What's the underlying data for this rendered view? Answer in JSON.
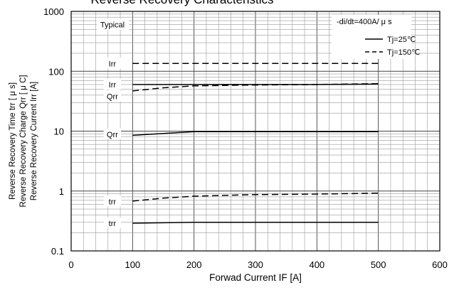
{
  "chart_data": {
    "type": "line",
    "title": "Reverse Recovery Characteristics",
    "xlabel": "Forwad Current IF [A]",
    "ylabel_lines": [
      "Reverse Recovery Time trr [ μ s]",
      "Reverse Recovery Charge Qrr [ μ C]",
      "Reverse Recovery Current Irr [A]"
    ],
    "x_scale": "linear",
    "y_scale": "log",
    "xlim": [
      0,
      600
    ],
    "ylim": [
      0.1,
      1000
    ],
    "x_ticks": [
      0,
      100,
      200,
      300,
      400,
      500,
      600
    ],
    "y_ticks": [
      {
        "value": 0.1,
        "label": "0.1"
      },
      {
        "value": 1,
        "label": "1"
      },
      {
        "value": 10,
        "label": "10"
      },
      {
        "value": 100,
        "label": "100"
      },
      {
        "value": 1000,
        "label": "1000"
      }
    ],
    "grid": true,
    "condition_label": "Typical",
    "test_condition": "-di/dt=400A/ μ s",
    "legend_position": "top-right",
    "legend": [
      {
        "label": "Tj=25℃",
        "style": "solid"
      },
      {
        "label": "Tj=150℃",
        "style": "dashed"
      }
    ],
    "series": [
      {
        "quantity": "Irr",
        "temperature": "150",
        "style": "dashed",
        "x": [
          100,
          200,
          300,
          400,
          500
        ],
        "y": [
          135,
          135,
          135,
          135,
          135
        ]
      },
      {
        "quantity": "Irr",
        "temperature": "25",
        "style": "solid",
        "x": [
          100,
          200,
          300,
          400,
          500
        ],
        "y": [
          60,
          60,
          60,
          60,
          61
        ]
      },
      {
        "quantity": "Qrr",
        "temperature": "150",
        "style": "dashed",
        "x": [
          100,
          150,
          200,
          300,
          400,
          500
        ],
        "y": [
          47,
          53,
          57,
          59,
          60,
          62
        ]
      },
      {
        "quantity": "Qrr",
        "temperature": "25",
        "style": "solid",
        "x": [
          100,
          200,
          300,
          400,
          500
        ],
        "y": [
          8.5,
          9.8,
          9.8,
          9.8,
          9.8
        ]
      },
      {
        "quantity": "trr",
        "temperature": "150",
        "style": "dashed",
        "x": [
          100,
          150,
          200,
          300,
          400,
          500
        ],
        "y": [
          0.68,
          0.76,
          0.82,
          0.87,
          0.89,
          0.92
        ]
      },
      {
        "quantity": "trr",
        "temperature": "25",
        "style": "solid",
        "x": [
          100,
          200,
          300,
          400,
          500
        ],
        "y": [
          0.29,
          0.3,
          0.3,
          0.3,
          0.3
        ]
      }
    ],
    "curve_labels": [
      {
        "text": "Irr",
        "x": 67,
        "y": 135
      },
      {
        "text": "Irr",
        "x": 67,
        "y": 60
      },
      {
        "text": "Qrr",
        "x": 67,
        "y": 38
      },
      {
        "text": "Qrr",
        "x": 67,
        "y": 8.9
      },
      {
        "text": "trr",
        "x": 67,
        "y": 0.67
      },
      {
        "text": "trr",
        "x": 67,
        "y": 0.29
      }
    ]
  }
}
